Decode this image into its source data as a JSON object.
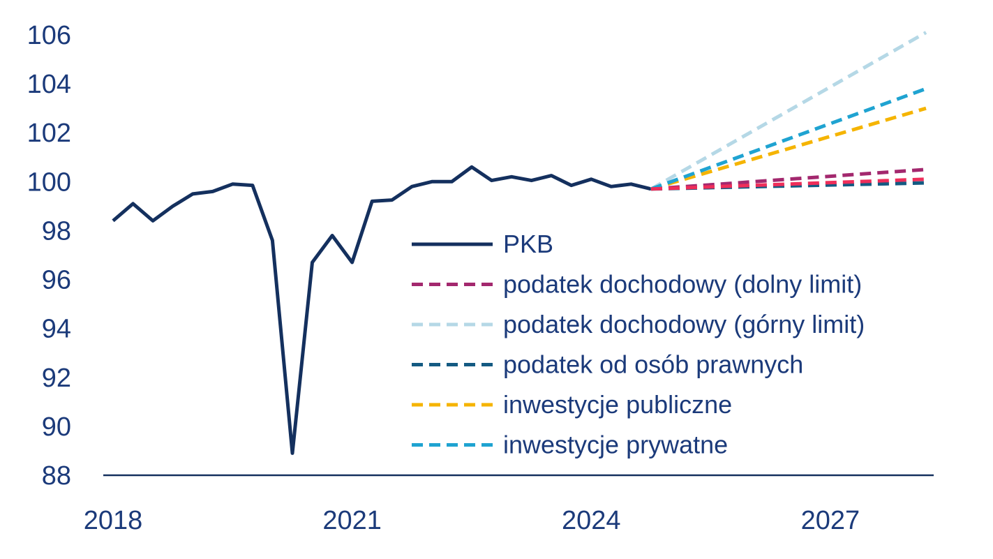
{
  "chart_data": {
    "type": "line",
    "title": "",
    "xlabel": "",
    "ylabel": "",
    "xlim": [
      2018,
      2028.3
    ],
    "ylim": [
      88,
      106
    ],
    "x_ticks": [
      2018,
      2021,
      2024,
      2027
    ],
    "y_ticks": [
      88,
      90,
      92,
      94,
      96,
      98,
      100,
      102,
      104,
      106
    ],
    "grid": false,
    "legend_position": "center-right",
    "series": [
      {
        "name": "PKB",
        "style": "solid",
        "color": "#14305e",
        "x": [
          2018.0,
          2018.25,
          2018.5,
          2018.75,
          2019.0,
          2019.25,
          2019.5,
          2019.75,
          2020.0,
          2020.25,
          2020.5,
          2020.75,
          2021.0,
          2021.25,
          2021.5,
          2021.75,
          2022.0,
          2022.25,
          2022.5,
          2022.75,
          2023.0,
          2023.25,
          2023.5,
          2023.75,
          2024.0,
          2024.25,
          2024.5,
          2024.75
        ],
        "values": [
          98.4,
          99.1,
          98.4,
          99.0,
          99.5,
          99.6,
          99.9,
          99.85,
          97.6,
          88.9,
          96.7,
          97.8,
          96.7,
          99.2,
          99.25,
          99.8,
          100.0,
          100.0,
          100.6,
          100.05,
          100.2,
          100.05,
          100.25,
          99.85,
          100.1,
          99.8,
          99.9,
          99.7
        ]
      },
      {
        "name": "podatek dochodowy (dolny limit)",
        "style": "dashed",
        "color": "#a3286e",
        "x": [
          2024.75,
          2028.2
        ],
        "values": [
          99.7,
          100.5
        ]
      },
      {
        "name": "podatek dochodowy (górny limit)",
        "style": "dashed",
        "color": "#b5d8e6",
        "x": [
          2024.75,
          2028.2
        ],
        "values": [
          99.7,
          106.1
        ]
      },
      {
        "name": "podatek od osób prawnych",
        "style": "dashed",
        "color": "#145a82",
        "x": [
          2024.75,
          2028.2
        ],
        "values": [
          99.7,
          99.95
        ]
      },
      {
        "name": "inwestycje publiczne",
        "style": "dashed",
        "color": "#f5b400",
        "x": [
          2024.75,
          2028.2
        ],
        "values": [
          99.7,
          103.0
        ]
      },
      {
        "name": "inwestycje prywatne",
        "style": "dashed",
        "color": "#1fa3d1",
        "x": [
          2024.75,
          2028.2
        ],
        "values": [
          99.7,
          103.8
        ]
      },
      {
        "name": "",
        "style": "dashed",
        "color": "#ee2e5a",
        "x": [
          2024.75,
          2028.2
        ],
        "values": [
          99.7,
          100.1
        ]
      }
    ]
  }
}
